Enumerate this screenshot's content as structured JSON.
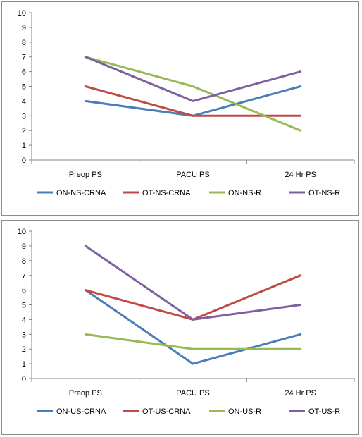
{
  "chart_data": [
    {
      "type": "line",
      "categories": [
        "Preop PS",
        "PACU PS",
        "24 Hr PS"
      ],
      "ylim": [
        0,
        10
      ],
      "yticks": [
        0,
        1,
        2,
        3,
        4,
        5,
        6,
        7,
        8,
        9,
        10
      ],
      "grid": false,
      "legend": "bottom",
      "series": [
        {
          "name": "ON-NS-CRNA",
          "color": "#4a7ebb",
          "values": [
            4,
            3,
            5
          ]
        },
        {
          "name": "OT-NS-CRNA",
          "color": "#be4b48",
          "values": [
            5,
            3,
            3
          ]
        },
        {
          "name": "ON-NS-R",
          "color": "#98b954",
          "values": [
            7,
            5,
            2
          ]
        },
        {
          "name": "OT-NS-R",
          "color": "#7d60a0",
          "values": [
            7,
            4,
            6
          ]
        }
      ]
    },
    {
      "type": "line",
      "categories": [
        "Preop PS",
        "PACU PS",
        "24 Hr PS"
      ],
      "ylim": [
        0,
        10
      ],
      "yticks": [
        0,
        1,
        2,
        3,
        4,
        5,
        6,
        7,
        8,
        9,
        10
      ],
      "grid": false,
      "legend": "bottom",
      "series": [
        {
          "name": "ON-US-CRNA",
          "color": "#4a7ebb",
          "values": [
            6,
            1,
            3
          ]
        },
        {
          "name": "OT-US-CRNA",
          "color": "#be4b48",
          "values": [
            6,
            4,
            7
          ]
        },
        {
          "name": "ON-US-R",
          "color": "#98b954",
          "values": [
            3,
            2,
            2
          ]
        },
        {
          "name": "OT-US-R",
          "color": "#7d60a0",
          "values": [
            9,
            4,
            5
          ]
        }
      ]
    }
  ]
}
